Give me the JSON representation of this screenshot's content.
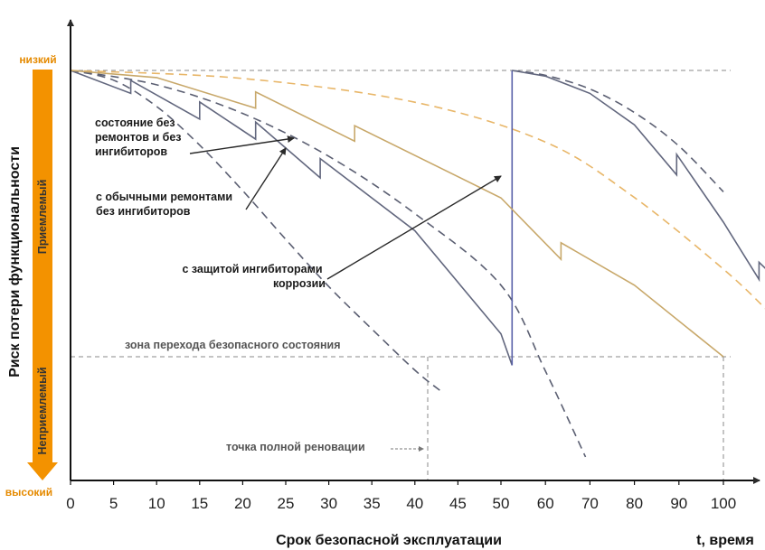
{
  "chart_data": {
    "type": "line",
    "x_axis": {
      "label": "Срок безопасной эксплуатации",
      "end_label": "t, время",
      "ticks": [
        0,
        5,
        10,
        15,
        20,
        25,
        30,
        35,
        40,
        45,
        50,
        60,
        70,
        80,
        90,
        100
      ],
      "ticks_text": [
        "0",
        "5",
        "10",
        "15",
        "20",
        "25",
        "30",
        "35",
        "40",
        "45",
        "50",
        "60",
        "70",
        "80",
        "90",
        "100"
      ]
    },
    "y_axis": {
      "label": "Риск потери функциональности",
      "top_label": "низкий",
      "bottom_label": "высокий",
      "zones": [
        "Приемлемый",
        "Неприемлемый"
      ]
    },
    "series": [
      {
        "key": "trend_no_repair",
        "dashed": true,
        "color": "#5b5f72",
        "x": [
          0,
          5,
          10,
          15,
          20,
          25,
          30,
          35,
          40,
          43
        ],
        "y": [
          1.0,
          0.966,
          0.874,
          0.739,
          0.58,
          0.41,
          0.245,
          0.097,
          -0.047,
          -0.12
        ]
      },
      {
        "key": "trend_repairs_1",
        "dashed": true,
        "color": "#5b5f72",
        "x": [
          0,
          10,
          20,
          30,
          40,
          50,
          60,
          69
        ],
        "y": [
          1.0,
          0.95,
          0.85,
          0.7,
          0.5,
          0.25,
          -0.05,
          -0.35
        ]
      },
      {
        "key": "trend_repairs_2",
        "dashed": true,
        "color": "#5b5f72",
        "x": [
          52.5,
          60,
          70,
          80,
          90,
          100
        ],
        "y": [
          1.0,
          0.983,
          0.935,
          0.853,
          0.736,
          0.576
        ]
      },
      {
        "key": "trend_inhibitors",
        "dashed": true,
        "color": "#e8b668",
        "x": [
          0,
          20,
          40,
          60,
          80,
          100,
          110
        ],
        "y": [
          1.0,
          0.972,
          0.889,
          0.75,
          0.556,
          0.306,
          0.16
        ]
      },
      {
        "key": "with_repairs",
        "dashed": false,
        "color": "#62677e",
        "x": [
          0,
          7,
          7,
          15,
          15,
          21.5,
          21.5,
          29,
          29,
          40,
          50,
          52.5
        ],
        "y": [
          1.0,
          0.92,
          0.965,
          0.83,
          0.89,
          0.76,
          0.82,
          0.625,
          0.692,
          0.44,
          0.08,
          -0.03
        ]
      },
      {
        "key": "renewal",
        "dashed": false,
        "color": "#5860a8",
        "x": [
          52.5,
          52.5
        ],
        "y": [
          -0.03,
          1.0
        ]
      },
      {
        "key": "with_repairs_2",
        "dashed": false,
        "color": "#62677e",
        "x": [
          52.5,
          60,
          70,
          80,
          89.5,
          89.5,
          100,
          108,
          108,
          110
        ],
        "y": [
          1.0,
          0.98,
          0.92,
          0.81,
          0.635,
          0.707,
          0.47,
          0.27,
          0.33,
          0.3
        ]
      },
      {
        "key": "with_inhibitors",
        "dashed": false,
        "color": "#c8a86a",
        "x": [
          0,
          10,
          21.5,
          21.5,
          33,
          33,
          50,
          63.5,
          63.5,
          80,
          100
        ],
        "y": [
          1.0,
          0.975,
          0.868,
          0.925,
          0.753,
          0.807,
          0.555,
          0.34,
          0.398,
          0.25,
          0.0
        ]
      }
    ],
    "annotations": {
      "no_repairs": [
        "состояние без",
        "ремонтов и без",
        "ингибиторов"
      ],
      "with_repairs": [
        "с обычными ремонтами",
        "без ингибиторов"
      ],
      "with_inhibitors": [
        "с защитой ингибиторами",
        "коррозии"
      ],
      "transition_zone": "зона перехода безопасного состояния",
      "renewal_point": "точка полной реновации"
    },
    "colors": {
      "axis_bar": "#f39200",
      "inhibitor": "#c8a86a",
      "repair": "#62677e",
      "renewal": "#5860a8",
      "guide": "#888888"
    }
  }
}
